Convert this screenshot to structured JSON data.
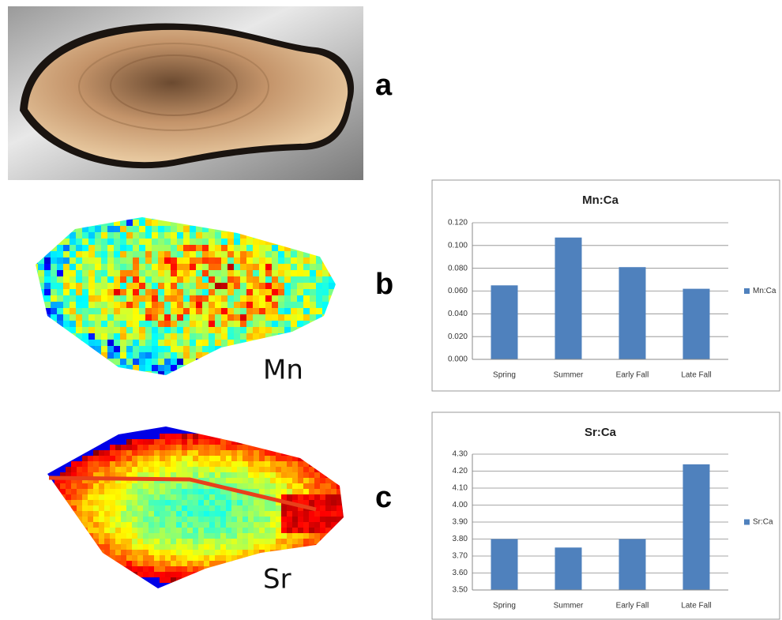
{
  "panels": [
    "a",
    "b",
    "c"
  ],
  "map_labels": [
    "Mn",
    "Sr"
  ],
  "chart_data": [
    {
      "type": "bar",
      "title": "Mn:Ca",
      "categories": [
        "Spring",
        "Summer",
        "Early Fall",
        "Late Fall"
      ],
      "series": [
        {
          "name": "Mn:Ca",
          "color": "#4f81bd",
          "values": [
            0.065,
            0.107,
            0.081,
            0.062
          ]
        }
      ],
      "ylim": [
        0,
        0.12
      ],
      "yticks": [
        {
          "value": 0,
          "label": "0.000"
        },
        {
          "value": 0.02,
          "label": "0.020"
        },
        {
          "value": 0.04,
          "label": "0.040"
        },
        {
          "value": 0.06,
          "label": "0.060"
        },
        {
          "value": 0.08,
          "label": "0.080"
        },
        {
          "value": 0.1,
          "label": "0.100"
        },
        {
          "value": 0.12,
          "label": "0.120"
        }
      ],
      "grid": true,
      "legend": "right"
    },
    {
      "type": "bar",
      "title": "Sr:Ca",
      "categories": [
        "Spring",
        "Summer",
        "Early Fall",
        "Late Fall"
      ],
      "series": [
        {
          "name": "Sr:Ca",
          "color": "#4f81bd",
          "values": [
            3.8,
            3.75,
            3.8,
            4.24
          ]
        }
      ],
      "ylim": [
        3.5,
        4.3
      ],
      "yticks": [
        {
          "value": 3.5,
          "label": "3.50"
        },
        {
          "value": 3.6,
          "label": "3.60"
        },
        {
          "value": 3.7,
          "label": "3.70"
        },
        {
          "value": 3.8,
          "label": "3.80"
        },
        {
          "value": 3.9,
          "label": "3.90"
        },
        {
          "value": 4.0,
          "label": "4.00"
        },
        {
          "value": 4.1,
          "label": "4.10"
        },
        {
          "value": 4.2,
          "label": "4.20"
        },
        {
          "value": 4.3,
          "label": "4.30"
        }
      ],
      "grid": true,
      "legend": "right"
    }
  ]
}
